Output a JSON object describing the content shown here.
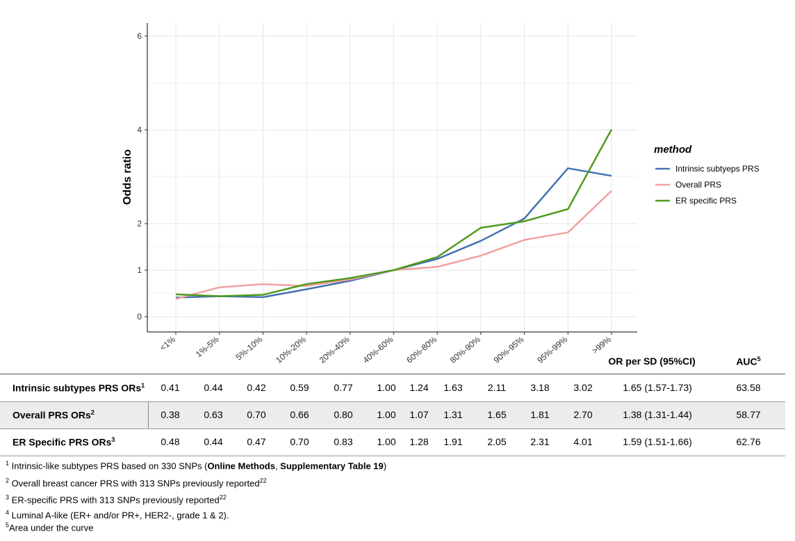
{
  "chart_data": {
    "type": "line",
    "ylabel": "Odds ratio",
    "xlabel": "",
    "categories": [
      "<1%",
      "1%-5%",
      "5%-10%",
      "10%-20%",
      "20%-40%",
      "40%-60%",
      "60%-80%",
      "80%-90%",
      "90%-95%",
      "95%-99%",
      ">99%"
    ],
    "y_ticks": [
      "0",
      "1",
      "2",
      "4",
      "6"
    ],
    "legend_title": "method",
    "legend_position": "right",
    "grid": true,
    "series": [
      {
        "name": "Intrinsic subtyeps PRS",
        "color": "#4472b0",
        "values": [
          0.41,
          0.44,
          0.42,
          0.59,
          0.77,
          1.0,
          1.24,
          1.63,
          2.11,
          3.18,
          3.02
        ]
      },
      {
        "name": "Overall PRS",
        "color": "#f2a0a0",
        "values": [
          0.38,
          0.63,
          0.7,
          0.66,
          0.8,
          1.0,
          1.07,
          1.31,
          1.65,
          1.81,
          2.7
        ]
      },
      {
        "name": "ER specific PRS",
        "color": "#4e9a1e",
        "values": [
          0.48,
          0.44,
          0.47,
          0.7,
          0.83,
          1.0,
          1.28,
          1.91,
          2.05,
          2.31,
          4.01
        ]
      }
    ]
  },
  "table": {
    "col_or": "OR per SD (95%CI)",
    "col_auc": "AUC",
    "col_auc_sup": "5",
    "rows": [
      {
        "label": "Intrinsic subtypes PRS ORs",
        "sup": "1",
        "values": [
          "0.41",
          "0.44",
          "0.42",
          "0.59",
          "0.77",
          "1.00",
          "1.24",
          "1.63",
          "2.11",
          "3.18",
          "3.02"
        ],
        "or": "1.65 (1.57-1.73)",
        "auc": "63.58"
      },
      {
        "label": "Overall PRS ORs",
        "sup": "2",
        "values": [
          "0.38",
          "0.63",
          "0.70",
          "0.66",
          "0.80",
          "1.00",
          "1.07",
          "1.31",
          "1.65",
          "1.81",
          "2.70"
        ],
        "or": "1.38 (1.31-1.44)",
        "auc": "58.77"
      },
      {
        "label": "ER Specific PRS ORs",
        "sup": "3",
        "values": [
          "0.48",
          "0.44",
          "0.47",
          "0.70",
          "0.83",
          "1.00",
          "1.28",
          "1.91",
          "2.05",
          "2.31",
          "4.01"
        ],
        "or": "1.59 (1.51-1.66)",
        "auc": "62.76"
      }
    ]
  },
  "footnotes": {
    "f1_num": "1",
    "f1_text": " Intrinsic-like subtypes PRS based on 330 SNPs (",
    "f1_bold_a": "Online Methods",
    "f1_sep": ", ",
    "f1_bold_b": "Supplementary Table 19",
    "f1_end": ")",
    "f2_num": "2",
    "f2_text": " Overall breast cancer PRS with 313 SNPs previously reported",
    "f2_ref": "22",
    "f3_num": "3",
    "f3_text": " ER-specific PRS with 313 SNPs previously reported",
    "f3_ref": "22",
    "f4_num": "4",
    "f4_text": " Luminal A-like (ER+ and/or PR+, HER2-, grade 1 & 2).",
    "f5_num": "5",
    "f5_text": "Area under the curve"
  }
}
